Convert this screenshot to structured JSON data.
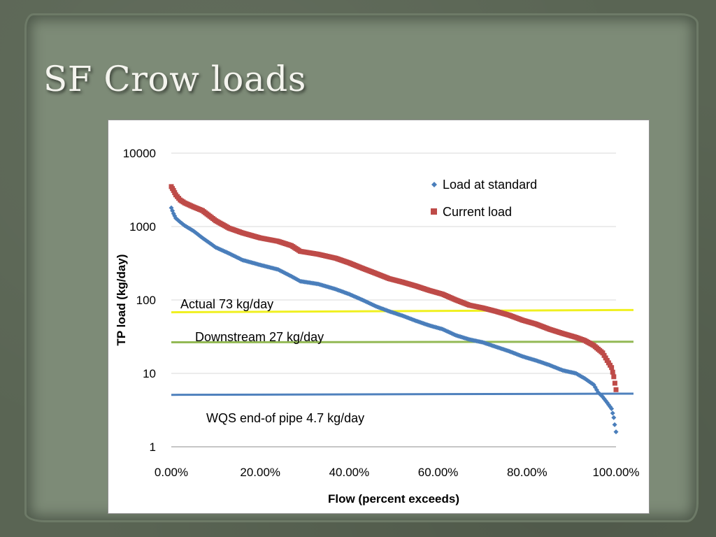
{
  "slide": {
    "title": "SF Crow loads"
  },
  "colors": {
    "load_at_standard": "#4a7ebb",
    "current_load": "#be4b48",
    "actual_line": "#f0f020",
    "downstream_line": "#93b955",
    "wqs_line": "#4f81bd",
    "grid": "#d9d9d9"
  },
  "chart_data": {
    "type": "scatter",
    "xlabel": "Flow (percent exceeds)",
    "ylabel": "TP load (kg/day)",
    "x_scale": "linear",
    "y_scale": "log",
    "xlim": [
      0,
      100
    ],
    "ylim": [
      1,
      10000
    ],
    "x_ticks": [
      "0.00%",
      "20.00%",
      "40.00%",
      "60.00%",
      "80.00%",
      "100.00%"
    ],
    "y_ticks": [
      "10000",
      "1000",
      "100",
      "10",
      "1"
    ],
    "grid": "horizontal",
    "legend_position": "top-right",
    "series": [
      {
        "name": "Load at standard",
        "marker": "diamond",
        "points": [
          [
            0,
            1800
          ],
          [
            0.5,
            1500
          ],
          [
            1,
            1300
          ],
          [
            2,
            1150
          ],
          [
            3,
            1030
          ],
          [
            5,
            870
          ],
          [
            7,
            700
          ],
          [
            10,
            520
          ],
          [
            13,
            430
          ],
          [
            16,
            350
          ],
          [
            20,
            300
          ],
          [
            24,
            260
          ],
          [
            27,
            210
          ],
          [
            29,
            180
          ],
          [
            33,
            165
          ],
          [
            37,
            140
          ],
          [
            40,
            120
          ],
          [
            43,
            100
          ],
          [
            46,
            82
          ],
          [
            49,
            70
          ],
          [
            52,
            61
          ],
          [
            55,
            52
          ],
          [
            58,
            45
          ],
          [
            61,
            40
          ],
          [
            64,
            33
          ],
          [
            67,
            29
          ],
          [
            70,
            26.5
          ],
          [
            73,
            23
          ],
          [
            76,
            20
          ],
          [
            79,
            17
          ],
          [
            82,
            15
          ],
          [
            85,
            13
          ],
          [
            88,
            11
          ],
          [
            91,
            10
          ],
          [
            93,
            8.5
          ],
          [
            95,
            7
          ],
          [
            96,
            5.5
          ],
          [
            97,
            4.8
          ],
          [
            98,
            4
          ],
          [
            99,
            3.3
          ],
          [
            99.5,
            2.5
          ],
          [
            99.7,
            2
          ],
          [
            100,
            1.6
          ]
        ]
      },
      {
        "name": "Current load",
        "marker": "square",
        "points": [
          [
            0,
            3500
          ],
          [
            0.5,
            3100
          ],
          [
            1,
            2700
          ],
          [
            2,
            2300
          ],
          [
            3,
            2100
          ],
          [
            5,
            1850
          ],
          [
            7,
            1650
          ],
          [
            10,
            1200
          ],
          [
            13,
            950
          ],
          [
            16,
            820
          ],
          [
            20,
            700
          ],
          [
            24,
            630
          ],
          [
            27,
            550
          ],
          [
            29,
            460
          ],
          [
            33,
            420
          ],
          [
            37,
            370
          ],
          [
            40,
            320
          ],
          [
            43,
            270
          ],
          [
            46,
            230
          ],
          [
            49,
            195
          ],
          [
            52,
            175
          ],
          [
            55,
            155
          ],
          [
            58,
            135
          ],
          [
            61,
            120
          ],
          [
            64,
            100
          ],
          [
            67,
            85
          ],
          [
            70,
            78
          ],
          [
            73,
            70
          ],
          [
            76,
            62
          ],
          [
            79,
            53
          ],
          [
            82,
            47
          ],
          [
            85,
            40
          ],
          [
            88,
            35
          ],
          [
            91,
            31
          ],
          [
            93,
            28
          ],
          [
            95,
            24
          ],
          [
            97,
            19
          ],
          [
            98,
            15
          ],
          [
            99,
            12
          ],
          [
            99.5,
            9
          ],
          [
            100,
            6
          ]
        ]
      }
    ],
    "reference_lines": [
      {
        "label": "Actual 73 kg/day",
        "value_start": 68,
        "value_end": 73,
        "color_key": "actual_line"
      },
      {
        "label": "Downstream 27 kg/day",
        "value_start": 26.5,
        "value_end": 27,
        "color_key": "downstream_line"
      },
      {
        "label": "WQS end-of pipe 4.7 kg/day",
        "value_start": 5.1,
        "value_end": 5.3,
        "color_key": "wqs_line"
      }
    ]
  }
}
